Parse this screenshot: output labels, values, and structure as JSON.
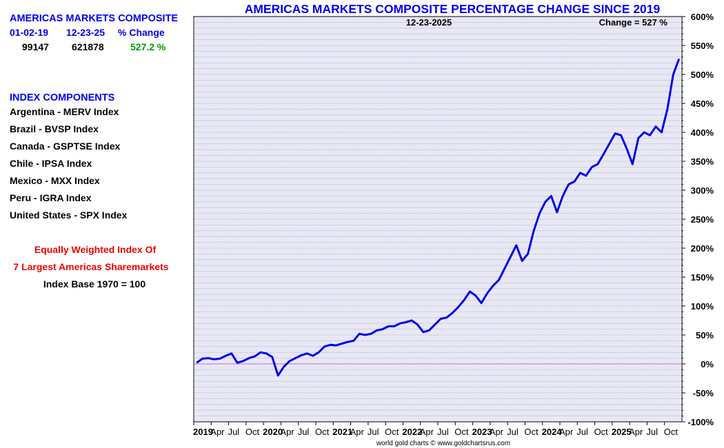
{
  "side_panel": {
    "heading": "AMERICAS MARKETS COMPOSITE",
    "col_start_label": "01-02-19",
    "col_end_label": "12-23-25",
    "col_change_label": "% Change",
    "start_value": "99147",
    "end_value": "621878",
    "change_value": "527.2 %",
    "components_heading": "INDEX COMPONENTS",
    "components": [
      "Argentina - MERV Index",
      "Brazil - BVSP Index",
      "Canada - GSPTSE Index",
      "Chile - IPSA Index",
      "Mexico - MXX Index",
      "Peru - IGRA Index",
      "United States - SPX Index"
    ],
    "note_line1": "Equally Weighted Index Of",
    "note_line2": "7 Largest Americas Sharemarkets",
    "note_line3": "Index Base 1970 = 100"
  },
  "colors": {
    "line": "#0000ee",
    "zero_line": "#cc66cc",
    "grid": "#c8c8e6",
    "title": "#0000ee",
    "note": "#ee0000",
    "change": "#009900"
  },
  "chart_data": {
    "type": "line",
    "title": "AMERICAS MARKETS COMPOSITE PERCENTAGE CHANGE SINCE 2019",
    "date_label": "12-23-2025",
    "change_label": "Change = 527 %",
    "credit": "world gold charts © www.goldchartsrus.com",
    "ylim": [
      -100,
      600
    ],
    "xlim": [
      "2019-01",
      "2025-12"
    ],
    "y_ticks": [
      -100,
      -50,
      0,
      50,
      100,
      150,
      200,
      250,
      300,
      350,
      400,
      450,
      500,
      550,
      600
    ],
    "y_tick_labels": [
      "-100%",
      "-50%",
      "0%",
      "50%",
      "100%",
      "150%",
      "200%",
      "250%",
      "300%",
      "350%",
      "400%",
      "450%",
      "500%",
      "550%",
      "600%"
    ],
    "x_tick_labels": [
      "2019",
      "Apr",
      "Jul",
      "Oct",
      "2020",
      "Apr",
      "Jul",
      "Oct",
      "2021",
      "Apr",
      "Jul",
      "Oct",
      "2022",
      "Apr",
      "Jul",
      "Oct",
      "2023",
      "Apr",
      "Jul",
      "Oct",
      "2024",
      "Apr",
      "Jul",
      "Oct",
      "2025",
      "Apr",
      "Jul",
      "Oct"
    ],
    "grid": true,
    "zero_line": true,
    "series": [
      {
        "x": [
          "2019-01",
          "2019-02",
          "2019-03",
          "2019-04",
          "2019-05",
          "2019-06",
          "2019-07",
          "2019-08",
          "2019-09",
          "2019-10",
          "2019-11",
          "2019-12",
          "2020-01",
          "2020-02",
          "2020-03",
          "2020-04",
          "2020-05",
          "2020-06",
          "2020-07",
          "2020-08",
          "2020-09",
          "2020-10",
          "2020-11",
          "2020-12",
          "2021-01",
          "2021-02",
          "2021-03",
          "2021-04",
          "2021-05",
          "2021-06",
          "2021-07",
          "2021-08",
          "2021-09",
          "2021-10",
          "2021-11",
          "2021-12",
          "2022-01",
          "2022-02",
          "2022-03",
          "2022-04",
          "2022-05",
          "2022-06",
          "2022-07",
          "2022-08",
          "2022-09",
          "2022-10",
          "2022-11",
          "2022-12",
          "2023-01",
          "2023-02",
          "2023-03",
          "2023-04",
          "2023-05",
          "2023-06",
          "2023-07",
          "2023-08",
          "2023-09",
          "2023-10",
          "2023-11",
          "2023-12",
          "2024-01",
          "2024-02",
          "2024-03",
          "2024-04",
          "2024-05",
          "2024-06",
          "2024-07",
          "2024-08",
          "2024-09",
          "2024-10",
          "2024-11",
          "2024-12",
          "2025-01",
          "2025-02",
          "2025-03",
          "2025-04",
          "2025-05",
          "2025-06",
          "2025-07",
          "2025-08",
          "2025-09",
          "2025-10",
          "2025-11",
          "2025-12"
        ],
        "values": [
          2,
          9,
          10,
          8,
          9,
          14,
          18,
          2,
          5,
          10,
          13,
          20,
          18,
          12,
          -20,
          -5,
          5,
          10,
          15,
          18,
          14,
          20,
          30,
          33,
          32,
          35,
          38,
          40,
          52,
          50,
          52,
          58,
          60,
          65,
          65,
          70,
          72,
          75,
          68,
          55,
          58,
          68,
          78,
          80,
          88,
          98,
          110,
          125,
          118,
          105,
          122,
          135,
          145,
          165,
          185,
          205,
          178,
          190,
          230,
          260,
          280,
          290,
          262,
          290,
          310,
          315,
          330,
          325,
          340,
          345,
          362,
          380,
          398,
          395,
          372,
          345,
          390,
          400,
          395,
          410,
          400,
          440,
          500,
          527
        ]
      }
    ]
  }
}
